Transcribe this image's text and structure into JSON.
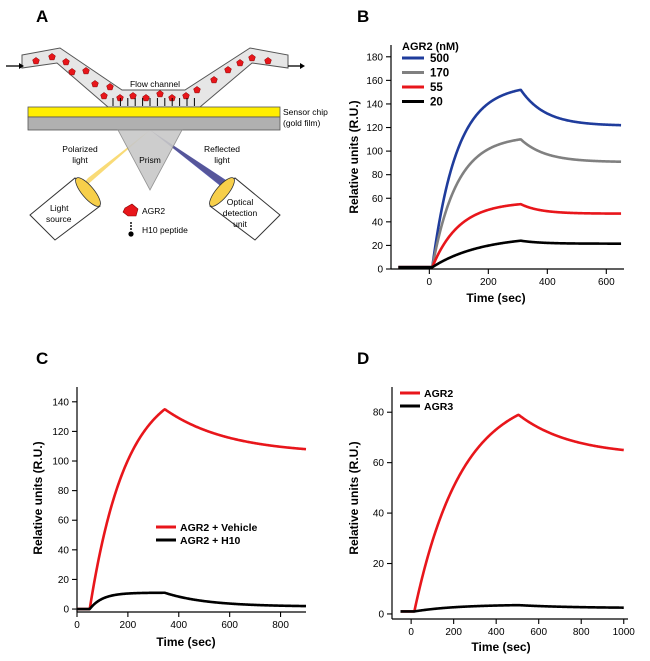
{
  "panel_letters": {
    "a": "A",
    "b": "B",
    "c": "C",
    "d": "D"
  },
  "diagram": {
    "flow_channel": "Flow channel",
    "sensor_chip_line1": "Sensor chip",
    "sensor_chip_line2": "(gold film)",
    "polarized_line1": "Polarized",
    "polarized_line2": "light",
    "prism": "Prism",
    "reflected_line1": "Reflected",
    "reflected_line2": "light",
    "light_source_line1": "Light",
    "light_source_line2": "source",
    "optical_line1": "Optical",
    "optical_line2": "detection",
    "optical_line3": "unit",
    "legend_agr2": "AGR2",
    "legend_h10": "H10 peptide",
    "colors": {
      "chip": "#ffee00",
      "gold": "#b0b0b0",
      "channel": "#e6e6e6",
      "protein": "#e8161b",
      "beam": "#f7cf4a",
      "beam_blue": "#3a3ea0"
    }
  },
  "chart_data": [
    {
      "id": "B",
      "type": "line",
      "ylabel": "Relative units (R.U.)",
      "xlabel": "Time (sec)",
      "xlim": [
        -130,
        660
      ],
      "ylim": [
        0,
        190
      ],
      "xticks": [
        0,
        200,
        400,
        600
      ],
      "yticks": [
        0,
        20,
        40,
        60,
        80,
        100,
        120,
        140,
        160,
        180
      ],
      "legend_title": "AGR2 (nM)",
      "legend_position": "top-left",
      "injection": {
        "start": 10,
        "end": 310,
        "end_time": 650,
        "baseline": 1.5
      },
      "series": [
        {
          "name": "500",
          "color": "#1f3c9c",
          "plateau": 152,
          "end": 122,
          "k_on": 0.012,
          "k_off": 0.012
        },
        {
          "name": "170",
          "color": "#808080",
          "plateau": 110,
          "end": 91,
          "k_on": 0.012,
          "k_off": 0.012
        },
        {
          "name": "55",
          "color": "#e8161b",
          "plateau": 55,
          "end": 47,
          "k_on": 0.011,
          "k_off": 0.015
        },
        {
          "name": "20",
          "color": "#000000",
          "plateau": 24,
          "end": 21.5,
          "k_on": 0.006,
          "k_off": 0.015
        }
      ]
    },
    {
      "id": "C",
      "type": "line",
      "ylabel": "Relative units (R.U.)",
      "xlabel": "Time (sec)",
      "xlim": [
        0,
        900
      ],
      "ylim": [
        -2,
        150
      ],
      "xticks": [
        0,
        200,
        400,
        600,
        800
      ],
      "yticks": [
        0,
        20,
        40,
        60,
        80,
        100,
        120,
        140
      ],
      "legend_position": "center",
      "injection": {
        "start": 50,
        "end": 345,
        "end_time": 900,
        "baseline": 0
      },
      "series": [
        {
          "name": "AGR2 + Vehicle",
          "color": "#e8161b",
          "plateau": 135,
          "end": 108,
          "k_on": 0.007,
          "k_off": 0.004
        },
        {
          "name": "AGR2 + H10",
          "color": "#000000",
          "plateau": 11,
          "end": 2,
          "k_on": 0.02,
          "k_off": 0.006
        }
      ]
    },
    {
      "id": "D",
      "type": "line",
      "ylabel": "Relative units (R.U.)",
      "xlabel": "Time (sec)",
      "xlim": [
        -90,
        1020
      ],
      "ylim": [
        -2,
        90
      ],
      "xticks": [
        0,
        200,
        400,
        600,
        800,
        1000
      ],
      "yticks": [
        0,
        20,
        40,
        60,
        80
      ],
      "legend_position": "top-left",
      "injection": {
        "start": 15,
        "end": 505,
        "end_time": 1000,
        "baseline": 1
      },
      "series": [
        {
          "name": "AGR2",
          "color": "#e8161b",
          "plateau": 79,
          "end": 65,
          "k_on": 0.0045,
          "k_off": 0.004
        },
        {
          "name": "AGR3",
          "color": "#000000",
          "plateau": 3.5,
          "end": 2.5,
          "k_on": 0.005,
          "k_off": 0.004
        }
      ]
    }
  ]
}
